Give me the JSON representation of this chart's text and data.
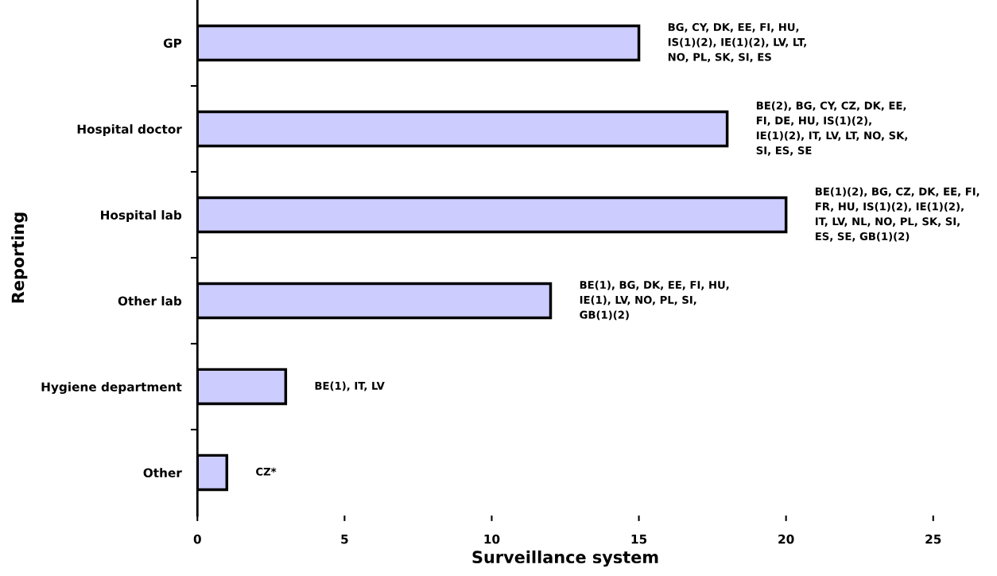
{
  "chart_data": {
    "type": "bar",
    "orientation": "horizontal",
    "categories": [
      "GP",
      "Hospital doctor",
      "Hospital lab",
      "Other lab",
      "Hygiene department",
      "Other"
    ],
    "values": [
      15,
      18,
      20,
      12,
      3,
      1
    ],
    "color": "#ccccff",
    "xlim": [
      0,
      25
    ],
    "xticks": [
      0,
      5,
      10,
      15,
      20,
      25
    ],
    "xlabel": "Surveillance system",
    "ylabel": "Reporting",
    "grid": false,
    "legend": false,
    "annotations": [
      {
        "text": "BG, CY, DK, EE, FI, HU,\nIS(1)(2), IE(1)(2), LV, LT,\nNO, PL, SK, SI, ES",
        "x": 15,
        "y": "GP"
      },
      {
        "text": "BE(2), BG, CY, CZ, DK, EE,\nFI, DE, HU, IS(1)(2),\nIE(1)(2), IT, LV, LT, NO, SK,\nSI, ES, SE",
        "x": 18,
        "y": "Hospital doctor"
      },
      {
        "text": "BE(1)(2), BG, CZ, DK, EE, FI,\nFR, HU, IS(1)(2), IE(1)(2),\nIT, LV, NL, NO, PL, SK, SI,\nES, SE, GB(1)(2)",
        "x": 20,
        "y": "Hospital lab"
      },
      {
        "text": "BE(1), BG, DK, EE, FI, HU,\nIE(1), LV, NO, PL, SI,\nGB(1)(2)",
        "x": 12,
        "y": "Other lab"
      },
      {
        "text": "BE(1), IT, LV",
        "x": 3,
        "y": "Hygiene department"
      },
      {
        "text": "CZ*",
        "x": 1,
        "y": "Other"
      }
    ]
  }
}
